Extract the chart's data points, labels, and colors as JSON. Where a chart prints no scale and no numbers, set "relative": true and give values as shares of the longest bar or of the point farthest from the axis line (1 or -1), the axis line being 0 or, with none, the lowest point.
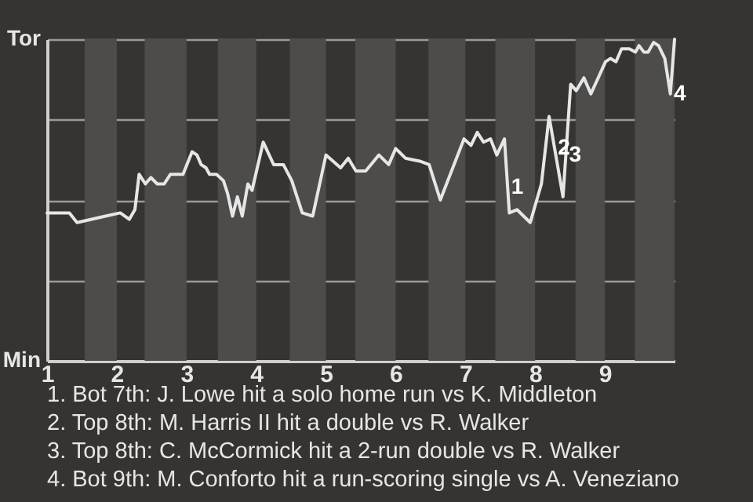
{
  "chart_data": {
    "type": "line",
    "relative": true,
    "x": [
      1,
      1.32,
      1.43,
      1.84,
      2.05,
      2.18,
      2.26,
      2.32,
      2.41,
      2.49,
      2.58,
      2.68,
      2.77,
      2.95,
      3.08,
      3.15,
      3.21,
      3.28,
      3.33,
      3.43,
      3.53,
      3.59,
      3.66,
      3.73,
      3.8,
      3.88,
      3.94,
      4.1,
      4.25,
      4.39,
      4.51,
      4.66,
      4.81,
      5,
      5.21,
      5.32,
      5.43,
      5.57,
      5.76,
      5.9,
      6,
      6.14,
      6.36,
      6.48,
      6.64,
      6.98,
      7.08,
      7.17,
      7.26,
      7.36,
      7.45,
      7.56,
      7.63,
      7.74,
      7.93,
      8.09,
      8.2,
      8.4,
      8.51,
      8.59,
      8.7,
      8.8,
      9.01,
      9.08,
      9.16,
      9.24,
      9.35,
      9.44,
      9.49,
      9.56,
      9.62,
      9.7,
      9.77,
      9.86,
      9.94,
      10
    ],
    "values": [
      0.46,
      0.46,
      0.43,
      0.45,
      0.46,
      0.44,
      0.47,
      0.58,
      0.55,
      0.57,
      0.55,
      0.55,
      0.58,
      0.58,
      0.65,
      0.64,
      0.61,
      0.6,
      0.58,
      0.58,
      0.56,
      0.52,
      0.45,
      0.51,
      0.45,
      0.55,
      0.53,
      0.68,
      0.61,
      0.61,
      0.56,
      0.46,
      0.45,
      0.64,
      0.6,
      0.63,
      0.59,
      0.59,
      0.64,
      0.61,
      0.66,
      0.63,
      0.62,
      0.61,
      0.5,
      0.69,
      0.67,
      0.71,
      0.68,
      0.69,
      0.64,
      0.69,
      0.46,
      0.47,
      0.43,
      0.55,
      0.76,
      0.51,
      0.86,
      0.84,
      0.88,
      0.83,
      0.93,
      0.94,
      0.93,
      0.97,
      0.97,
      0.96,
      0.98,
      0.96,
      0.96,
      0.99,
      0.98,
      0.94,
      0.83,
      1
    ],
    "color": "#e6e6e6",
    "xlim": [
      1,
      10
    ],
    "xticks": [
      1,
      2,
      3,
      4,
      5,
      6,
      7,
      8,
      9
    ],
    "grid": "y",
    "bands": [
      {
        "axis": "x",
        "from": 1.54,
        "to": 2,
        "color": "#4d4c4a"
      },
      {
        "axis": "x",
        "from": 2.4,
        "to": 3,
        "color": "#4d4c4a"
      },
      {
        "axis": "x",
        "from": 3.45,
        "to": 4,
        "color": "#4d4c4a"
      },
      {
        "axis": "x",
        "from": 4.48,
        "to": 5,
        "color": "#4d4c4a"
      },
      {
        "axis": "x",
        "from": 5.42,
        "to": 6,
        "color": "#4d4c4a"
      },
      {
        "axis": "x",
        "from": 6.47,
        "to": 7,
        "color": "#4d4c4a"
      },
      {
        "axis": "x",
        "from": 7.43,
        "to": 8,
        "color": "#4d4c4a"
      },
      {
        "axis": "x",
        "from": 8.58,
        "to": 9,
        "color": "#4d4c4a"
      },
      {
        "axis": "x",
        "from": 9.43,
        "to": 10,
        "color": "#4d4c4a"
      }
    ],
    "annotations": [
      "Tor",
      "Min",
      {
        "text": "1",
        "x": 7.61,
        "y": 0.54
      },
      {
        "text": "2",
        "x": 8.28,
        "y": 0.66
      },
      {
        "text": "3",
        "x": 8.44,
        "y": 0.64
      },
      {
        "text": "4",
        "x": 9.94,
        "y": 0.83
      },
      "1. Bot 7th: J. Lowe hit a solo home run vs K. Middleton",
      "2. Top 8th: M. Harris II hit a double vs R. Walker",
      "3. Top 8th: C. McCormick hit a 2-run double vs R. Walker",
      "4. Bot 9th: M. Conforto hit a run-scoring single vs A. Veneziano"
    ]
  }
}
